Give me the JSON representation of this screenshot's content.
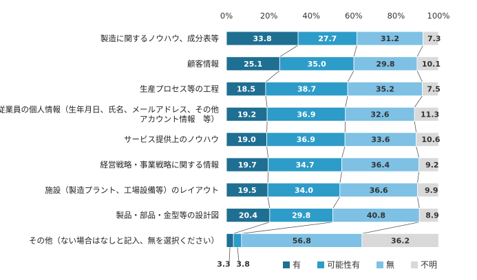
{
  "chart_data": {
    "type": "bar",
    "orientation": "horizontal",
    "stacked": true,
    "title": "",
    "xlabel": "",
    "ylabel": "",
    "xlim": [
      0,
      100
    ],
    "x_ticks": [
      "0%",
      "20%",
      "40%",
      "60%",
      "80%",
      "100%"
    ],
    "legend_placement": "bottom-right",
    "categories": [
      [
        "製造に関するノウハウ、成分表等"
      ],
      [
        "顧客情報"
      ],
      [
        "生産プロセス等の工程"
      ],
      [
        "従業員の個人情報（生年月日、氏名、メールアドレス、その他",
        "アカウント情報　等）"
      ],
      [
        "サービス提供上のノウハウ"
      ],
      [
        "経営戦略・事業戦略に関する情報"
      ],
      [
        "施設（製造プラント、工場設備等）のレイアウト"
      ],
      [
        "製品・部品・金型等の設計図"
      ],
      [
        "その他（ない場合はなしと記入、無を選択ください）"
      ]
    ],
    "series": [
      {
        "name": "有",
        "color": "#1f6f93",
        "values": [
          33.8,
          25.1,
          18.5,
          19.2,
          19.0,
          19.7,
          19.5,
          20.4,
          3.3
        ],
        "labels": [
          "33.8",
          "25.1",
          "18.5",
          "19.2",
          "19.0",
          "19.7",
          "19.5",
          "20.4",
          "3.3"
        ]
      },
      {
        "name": "可能性有",
        "color": "#2e9cc8",
        "values": [
          27.7,
          35.0,
          38.7,
          36.9,
          36.9,
          34.7,
          34.0,
          29.8,
          3.8
        ],
        "labels": [
          "27.7",
          "35.0",
          "38.7",
          "36.9",
          "36.9",
          "34.7",
          "34.0",
          "29.8",
          "3.8"
        ]
      },
      {
        "name": "無",
        "color": "#7ec1e4",
        "values": [
          31.2,
          29.8,
          35.2,
          32.6,
          33.6,
          36.4,
          36.6,
          40.8,
          56.8
        ],
        "labels": [
          "31.2",
          "29.8",
          "35.2",
          "32.6",
          "33.6",
          "36.4",
          "36.6",
          "40.8",
          "56.8"
        ]
      },
      {
        "name": "不明",
        "color": "#d9d9d9",
        "values": [
          7.3,
          10.1,
          7.5,
          11.3,
          10.6,
          9.2,
          9.9,
          8.9,
          36.2
        ],
        "labels": [
          "7.3",
          "10.1",
          "7.5",
          "11.3",
          "10.6",
          "9.2",
          "9.9",
          "8.9",
          "36.2"
        ]
      }
    ]
  }
}
